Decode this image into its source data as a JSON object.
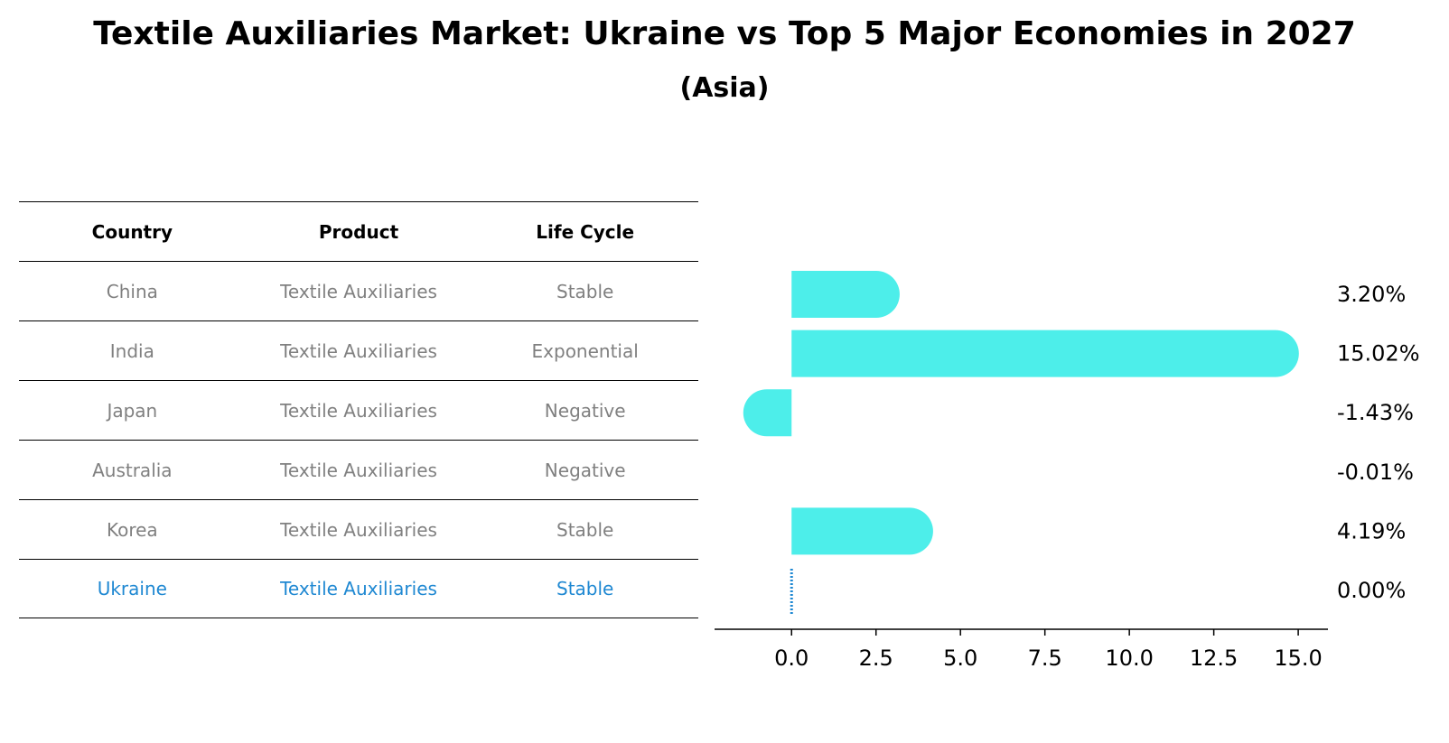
{
  "title": "Textile Auxiliaries Market: Ukraine vs Top 5 Major Economies in 2027",
  "subtitle": "(Asia)",
  "table": {
    "headers": [
      "Country",
      "Product",
      "Life Cycle"
    ],
    "rows": [
      {
        "country": "China",
        "product": "Textile Auxiliaries",
        "life_cycle": "Stable"
      },
      {
        "country": "India",
        "product": "Textile Auxiliaries",
        "life_cycle": "Exponential"
      },
      {
        "country": "Japan",
        "product": "Textile Auxiliaries",
        "life_cycle": "Negative"
      },
      {
        "country": "Australia",
        "product": "Textile Auxiliaries",
        "life_cycle": "Negative"
      },
      {
        "country": "Korea",
        "product": "Textile Auxiliaries",
        "life_cycle": "Stable"
      },
      {
        "country": "Ukraine",
        "product": "Textile Auxiliaries",
        "life_cycle": "Stable"
      }
    ]
  },
  "colors": {
    "bar": "#4deeea",
    "highlight": "#1f88d2",
    "muted_text": "#808080"
  },
  "chart_data": {
    "type": "bar",
    "orientation": "horizontal",
    "categories": [
      "China",
      "India",
      "Japan",
      "Australia",
      "Korea",
      "Ukraine"
    ],
    "values": [
      3.2,
      15.02,
      -1.43,
      -0.01,
      4.19,
      0.0
    ],
    "value_labels": [
      "3.20%",
      "15.02%",
      "-1.43%",
      "-0.01%",
      "4.19%",
      "0.00%"
    ],
    "xlim": [
      -2.28,
      15.88
    ],
    "xticks": [
      0.0,
      2.5,
      5.0,
      7.5,
      10.0,
      12.5,
      15.0
    ],
    "xtick_labels": [
      "0.0",
      "2.5",
      "5.0",
      "7.5",
      "10.0",
      "12.5",
      "15.0"
    ],
    "highlight_category": "Ukraine",
    "grid": false
  }
}
